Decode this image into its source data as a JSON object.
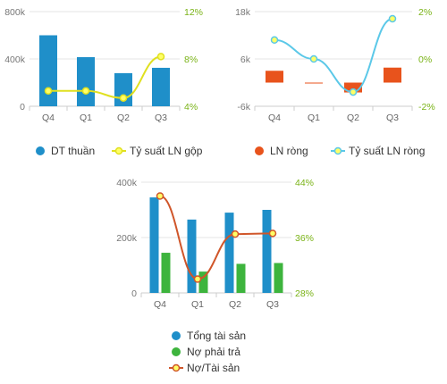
{
  "chart_data": [
    {
      "type": "bar",
      "categories": [
        "Q4",
        "Q1",
        "Q2",
        "Q3"
      ],
      "series": [
        {
          "name": "DT thuần",
          "type": "bar",
          "axis": "left",
          "values": [
            600000,
            415000,
            280000,
            325000
          ],
          "color": "#1f8fc9"
        },
        {
          "name": "Tỷ suất LN gộp",
          "type": "line",
          "axis": "right",
          "values": [
            5.3,
            5.3,
            4.7,
            8.2
          ],
          "color": "#e0e020"
        }
      ],
      "y_left": {
        "range": [
          0,
          800000
        ],
        "ticks": [
          "0",
          "400k",
          "800k"
        ],
        "values": [
          0,
          400000,
          800000
        ],
        "color": "#777777"
      },
      "y_right": {
        "range": [
          4,
          12
        ],
        "ticks": [
          "4%",
          "8%",
          "12%"
        ],
        "values": [
          4,
          8,
          12
        ],
        "color": "#7ab317"
      }
    },
    {
      "type": "bar",
      "categories": [
        "Q4",
        "Q1",
        "Q2",
        "Q3"
      ],
      "series": [
        {
          "name": "LN ròng",
          "type": "bar",
          "axis": "left",
          "values": [
            3000,
            -100,
            -2500,
            3800
          ],
          "color": "#e8531c"
        },
        {
          "name": "Tỷ suất LN ròng",
          "type": "line",
          "axis": "right",
          "values": [
            0.8,
            0.0,
            -1.4,
            1.7
          ],
          "color": "#5bc8e8"
        }
      ],
      "y_left": {
        "range": [
          -6000,
          18000
        ],
        "ticks": [
          "-6k",
          "6k",
          "18k"
        ],
        "values": [
          -6000,
          6000,
          18000
        ],
        "color": "#777777"
      },
      "y_right": {
        "range": [
          -2,
          2
        ],
        "ticks": [
          "-2%",
          "0%",
          "2%"
        ],
        "values": [
          -2,
          0,
          2
        ],
        "color": "#7ab317"
      }
    },
    {
      "type": "bar",
      "categories": [
        "Q4",
        "Q1",
        "Q2",
        "Q3"
      ],
      "series": [
        {
          "name": "Tổng tài sản",
          "type": "bar",
          "axis": "left",
          "values": [
            345000,
            265000,
            290000,
            300000
          ],
          "color": "#1f8fc9"
        },
        {
          "name": "Nợ phải trả",
          "type": "bar",
          "axis": "left",
          "values": [
            145000,
            77000,
            105000,
            108000
          ],
          "color": "#3db43d"
        },
        {
          "name": "Nợ/Tài sản",
          "type": "line",
          "axis": "right",
          "values": [
            42.0,
            30.0,
            36.5,
            36.6
          ],
          "color": "#d0562a"
        }
      ],
      "y_left": {
        "range": [
          0,
          400000
        ],
        "ticks": [
          "0",
          "200k",
          "400k"
        ],
        "values": [
          0,
          200000,
          400000
        ],
        "color": "#777777"
      },
      "y_right": {
        "range": [
          28,
          44
        ],
        "ticks": [
          "28%",
          "36%",
          "44%"
        ],
        "values": [
          28,
          36,
          44
        ],
        "color": "#7ab317"
      }
    }
  ],
  "line_marker_fill": "#ffff66"
}
